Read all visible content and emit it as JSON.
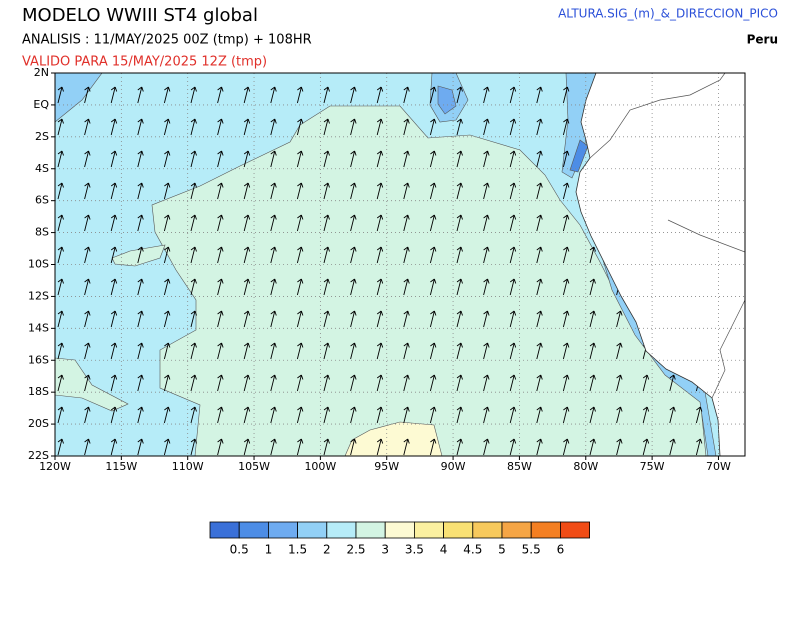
{
  "header": {
    "title": "MODELO WWIII ST4 global",
    "subtitle": "ANALISIS : 11/MAY/2025 00Z  (tmp) + 108HR",
    "valid": "VALIDO PARA  15/MAY/2025 12Z  (tmp)",
    "variable": "ALTURA.SIG_(m)_&_DIRECCION_PICO",
    "region": "Peru"
  },
  "map": {
    "xlim": [
      -120,
      -68
    ],
    "ylim": [
      -22,
      2
    ],
    "xticks": [
      {
        "value": -120,
        "label": "120W"
      },
      {
        "value": -115,
        "label": "115W"
      },
      {
        "value": -110,
        "label": "110W"
      },
      {
        "value": -105,
        "label": "105W"
      },
      {
        "value": -100,
        "label": "100W"
      },
      {
        "value": -95,
        "label": "95W"
      },
      {
        "value": -90,
        "label": "90W"
      },
      {
        "value": -85,
        "label": "85W"
      },
      {
        "value": -80,
        "label": "80W"
      },
      {
        "value": -75,
        "label": "75W"
      },
      {
        "value": -70,
        "label": "70W"
      }
    ],
    "yticks": [
      {
        "value": 2,
        "label": "2N"
      },
      {
        "value": 0,
        "label": "EQ"
      },
      {
        "value": -2,
        "label": "2S"
      },
      {
        "value": -4,
        "label": "4S"
      },
      {
        "value": -6,
        "label": "6S"
      },
      {
        "value": -8,
        "label": "8S"
      },
      {
        "value": -10,
        "label": "10S"
      },
      {
        "value": -12,
        "label": "12S"
      },
      {
        "value": -14,
        "label": "14S"
      },
      {
        "value": -16,
        "label": "16S"
      },
      {
        "value": -18,
        "label": "18S"
      },
      {
        "value": -20,
        "label": "20S"
      },
      {
        "value": -22,
        "label": "22S"
      }
    ]
  },
  "colorbar": {
    "levels": [
      0.5,
      1,
      1.5,
      2,
      2.5,
      3,
      3.5,
      4,
      4.5,
      5,
      5.5,
      6
    ],
    "colors": [
      "#3a70d8",
      "#4d8de6",
      "#6eabf0",
      "#92d0f6",
      "#b6ecf8",
      "#d3f4e3",
      "#fdfad3",
      "#fbf0a0",
      "#f9e174",
      "#f7c95c",
      "#f5a545",
      "#f47f22",
      "#f04c16"
    ]
  }
}
